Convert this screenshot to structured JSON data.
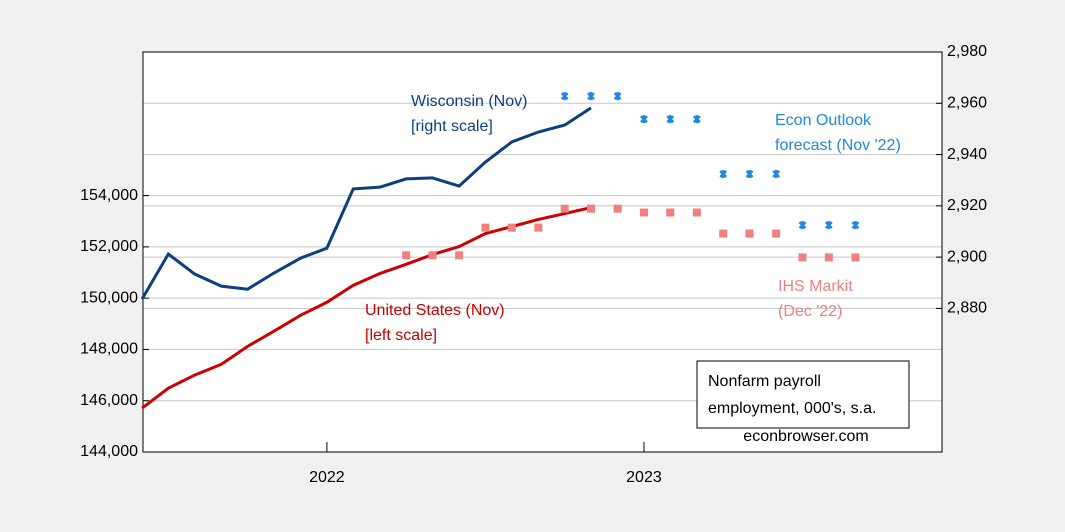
{
  "chart_data": {
    "type": "line",
    "xlim": [
      2021.42,
      2023.94
    ],
    "xticks": [
      {
        "value": 2022,
        "label": "2022"
      },
      {
        "value": 2023,
        "label": "2023"
      }
    ],
    "ylim": [
      144000,
      159600
    ],
    "yticks": [
      {
        "value": 144000,
        "label": "144,000"
      },
      {
        "value": 146000,
        "label": "146,000"
      },
      {
        "value": 148000,
        "label": "148,000"
      },
      {
        "value": 150000,
        "label": "150,000"
      },
      {
        "value": 152000,
        "label": "152,000"
      },
      {
        "value": 154000,
        "label": "154,000"
      }
    ],
    "y2lim": [
      2824,
      2980
    ],
    "y2ticks": [
      {
        "value": 2880,
        "label": "2,880"
      },
      {
        "value": 2900,
        "label": "2,900"
      },
      {
        "value": 2920,
        "label": "2,920"
      },
      {
        "value": 2940,
        "label": "2,940"
      },
      {
        "value": 2960,
        "label": "2,960"
      },
      {
        "value": 2980,
        "label": "2,980"
      }
    ],
    "grid": true,
    "series": [
      {
        "name": "United States (Nov)",
        "color": "#cc0000",
        "style": "line",
        "axis": "y",
        "x": [
          2021.417,
          2021.5,
          2021.583,
          2021.667,
          2021.75,
          2021.833,
          2021.917,
          2022.0,
          2022.083,
          2022.167,
          2022.25,
          2022.333,
          2022.417,
          2022.5,
          2022.583,
          2022.667,
          2022.75,
          2022.833
        ],
        "values": [
          145710,
          146490,
          147000,
          147420,
          148120,
          148710,
          149330,
          149840,
          150500,
          150960,
          151320,
          151700,
          152010,
          152520,
          152790,
          153070,
          153300,
          153530
        ]
      },
      {
        "name": "Wisconsin (Nov)",
        "color": "#0d3f80",
        "style": "line",
        "axis": "y2",
        "x": [
          2021.417,
          2021.5,
          2021.583,
          2021.667,
          2021.75,
          2021.833,
          2021.917,
          2022.0,
          2022.083,
          2022.167,
          2022.25,
          2022.333,
          2022.417,
          2022.5,
          2022.583,
          2022.667,
          2022.75,
          2022.833
        ],
        "values": [
          2883.6,
          2901.2,
          2893.4,
          2888.7,
          2887.5,
          2893.8,
          2899.6,
          2903.5,
          2926.6,
          2927.3,
          2930.5,
          2930.9,
          2927.7,
          2937.1,
          2944.9,
          2948.8,
          2951.5,
          2958.2
        ]
      },
      {
        "name": "Econ Outlook forecast (Nov '22)",
        "color": "#1e88e5",
        "style": "cross",
        "axis": "y2",
        "x": [
          2022.75,
          2022.833,
          2022.917,
          2023.0,
          2023.083,
          2023.167,
          2023.25,
          2023.333,
          2023.417,
          2023.5,
          2023.583,
          2023.667
        ],
        "values": [
          2962.8,
          2962.8,
          2962.8,
          2953.8,
          2953.8,
          2953.8,
          2932.4,
          2932.4,
          2932.4,
          2912.5,
          2912.5,
          2912.5
        ]
      },
      {
        "name": "IHS Markit (Dec '22)",
        "color": "#f08080",
        "style": "square",
        "axis": "y",
        "x": [
          2022.25,
          2022.333,
          2022.417,
          2022.5,
          2022.583,
          2022.667,
          2022.75,
          2022.833,
          2022.917,
          2023.0,
          2023.083,
          2023.167,
          2023.25,
          2023.333,
          2023.417,
          2023.5,
          2023.583,
          2023.667
        ],
        "values": [
          151670,
          151670,
          151670,
          152750,
          152750,
          152750,
          153490,
          153490,
          153490,
          153340,
          153340,
          153340,
          152520,
          152520,
          152520,
          151590,
          151590,
          151590
        ]
      }
    ],
    "annotations": [
      {
        "lines": [
          "Wisconsin (Nov)",
          "[right scale]"
        ],
        "color": "#0d3f80"
      },
      {
        "lines": [
          "United States (Nov)",
          "[left scale]"
        ],
        "color": "#cc0000"
      },
      {
        "lines": [
          "Econ Outlook",
          "forecast (Nov '22)"
        ],
        "color": "#1e88e5"
      },
      {
        "lines": [
          "IHS Markit",
          "(Dec '22)"
        ],
        "color": "#f08080"
      }
    ],
    "note_box": [
      "Nonfarm payroll",
      "employment, 000's, s.a."
    ],
    "source": "econbrowser.com"
  }
}
